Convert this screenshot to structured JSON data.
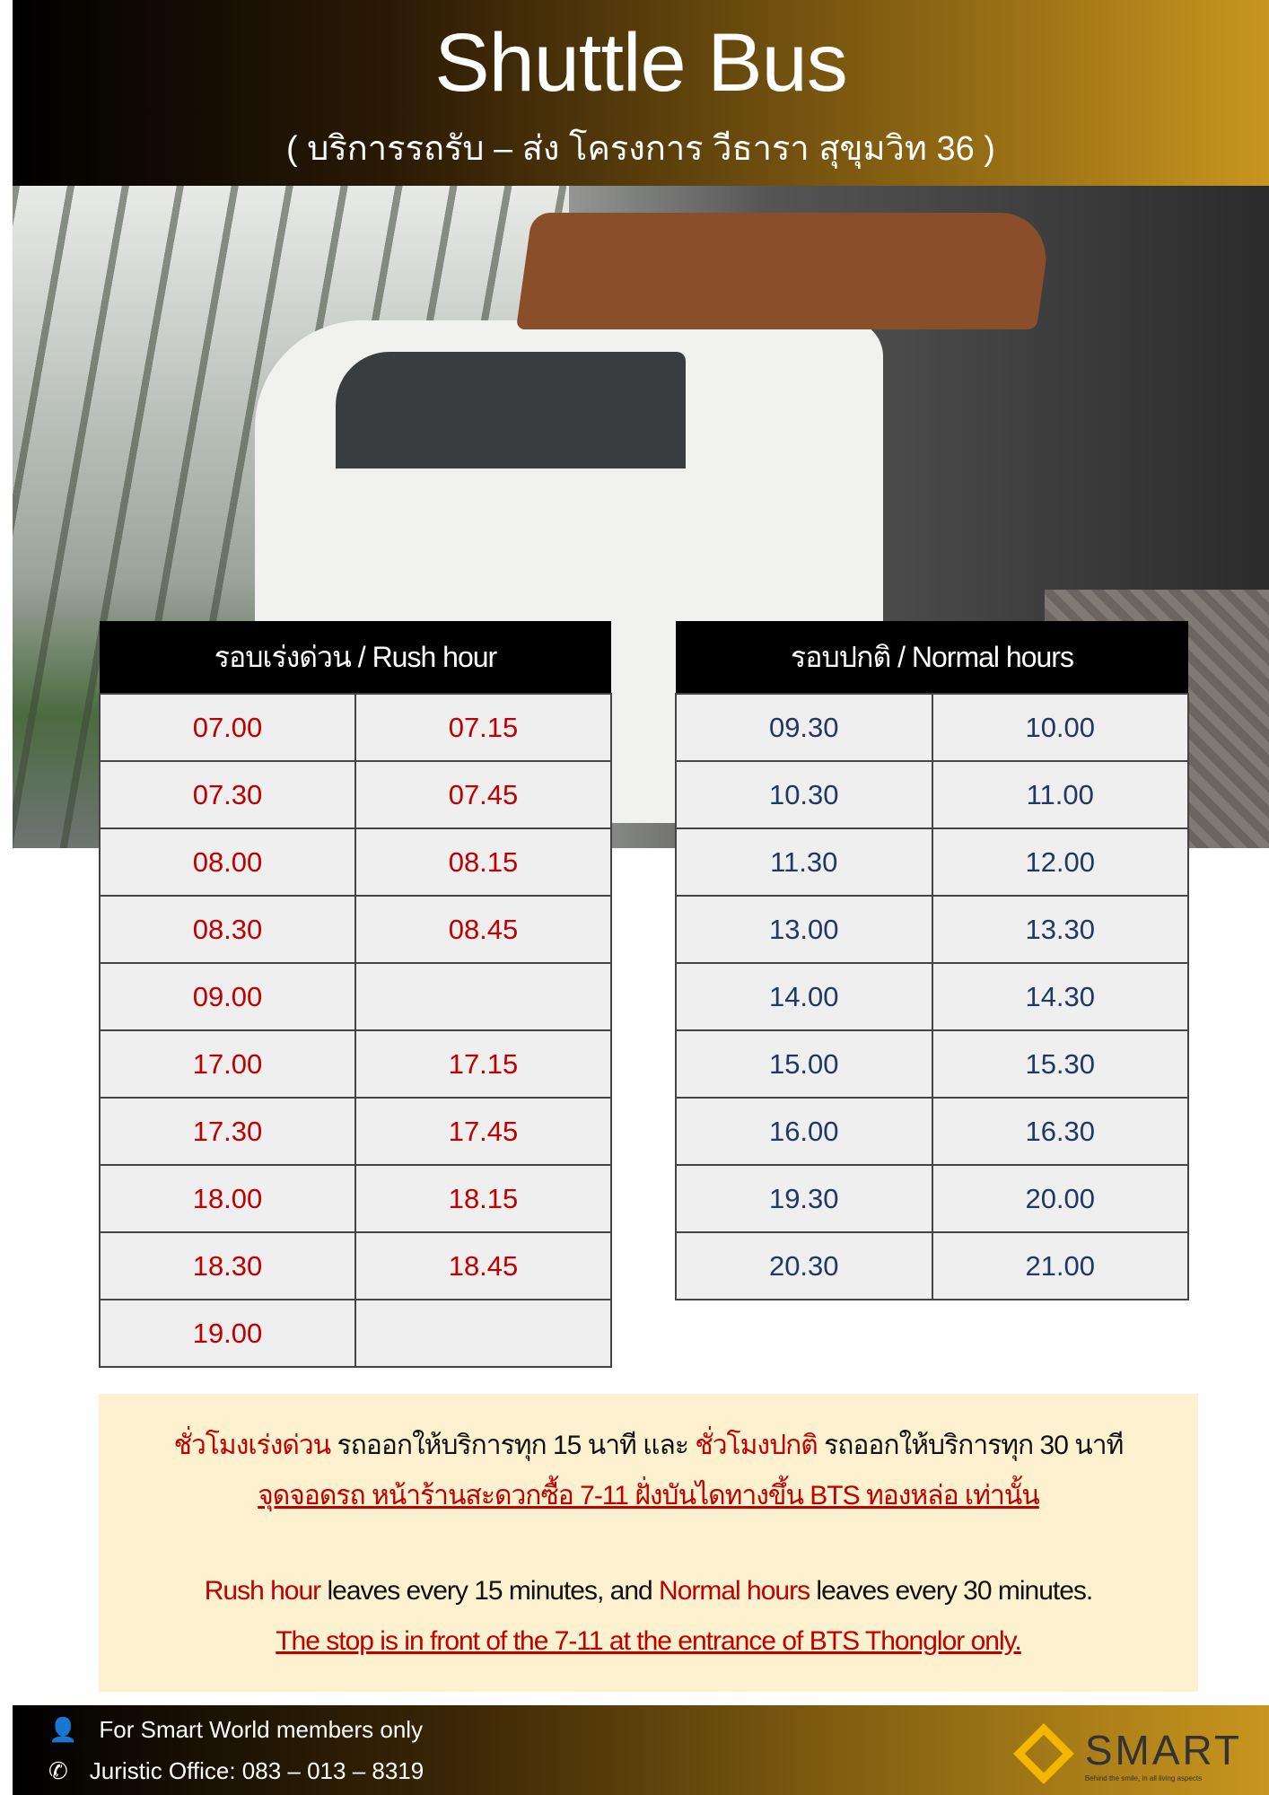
{
  "header": {
    "title": "Shuttle Bus",
    "subtitle": "( บริการรถรับ – ส่ง โครงการ วีธารา สุขุมวิท 36 )"
  },
  "rush": {
    "heading": "รอบเร่งด่วน / Rush hour",
    "color": "#c00000",
    "rows": [
      [
        "07.00",
        "07.15"
      ],
      [
        "07.30",
        "07.45"
      ],
      [
        "08.00",
        "08.15"
      ],
      [
        "08.30",
        "08.45"
      ],
      [
        "09.00",
        ""
      ],
      [
        "17.00",
        "17.15"
      ],
      [
        "17.30",
        "17.45"
      ],
      [
        "18.00",
        "18.15"
      ],
      [
        "18.30",
        "18.45"
      ],
      [
        "19.00",
        ""
      ]
    ]
  },
  "normal": {
    "heading": "รอบปกติ / Normal hours",
    "color": "#1f3864",
    "rows": [
      [
        "09.30",
        "10.00"
      ],
      [
        "10.30",
        "11.00"
      ],
      [
        "11.30",
        "12.00"
      ],
      [
        "13.00",
        "13.30"
      ],
      [
        "14.00",
        "14.30"
      ],
      [
        "15.00",
        "15.30"
      ],
      [
        "16.00",
        "16.30"
      ],
      [
        "19.30",
        "20.00"
      ],
      [
        "20.30",
        "21.00"
      ]
    ]
  },
  "notes": {
    "th_rush": "ชั่วโมงเร่งด่วน",
    "th_rush_text": " รถออกให้บริการทุก 15 นาที และ ",
    "th_normal": "ชั่วโมงปกติ",
    "th_normal_text": " รถออกให้บริการทุก 30 นาที",
    "th_stop": "จุดจอดรถ หน้าร้านสะดวกซื้อ 7-11 ฝั่งบันไดทางขึ้น BTS ทองหล่อ เท่านั้น",
    "en_rush": "Rush hour",
    "en_rush_text": " leaves every 15 minutes, and ",
    "en_normal": "Normal hours",
    "en_normal_text": " leaves every 30 minutes.",
    "en_stop": "The stop is in front of the 7-11 at the entrance of BTS Thonglor only."
  },
  "footer": {
    "members": "For Smart World members only",
    "office": "Juristic Office: 083 – 013 – 8319",
    "logo": "SMART",
    "tagline": "Behind the smile, in all living aspects"
  }
}
